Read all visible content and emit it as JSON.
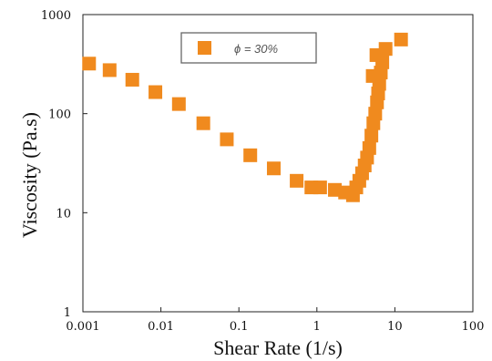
{
  "chart_data": {
    "type": "scatter",
    "xlabel": "Shear Rate (1/s)",
    "ylabel": "Viscosity (Pa.s)",
    "xscale": "log",
    "yscale": "log",
    "xlim": [
      0.001,
      100
    ],
    "ylim": [
      1,
      1000
    ],
    "x_ticks": [
      "0.001",
      "0.01",
      "0.1",
      "1",
      "10",
      "100"
    ],
    "y_ticks": [
      "1",
      "10",
      "100",
      "1000"
    ],
    "grid": false,
    "legend_position": "top",
    "marker_color": "#F08A1E",
    "series": [
      {
        "name": "ϕ = 30%",
        "x": [
          0.0012,
          0.0022,
          0.0043,
          0.0085,
          0.017,
          0.035,
          0.07,
          0.14,
          0.28,
          0.55,
          0.85,
          1.1,
          1.7,
          2.3,
          2.9,
          3.2,
          3.5,
          3.8,
          4.1,
          4.4,
          4.7,
          5.0,
          5.3,
          5.6,
          5.9,
          6.1,
          6.3,
          6.6,
          6.9,
          5.2,
          5.8,
          7.6,
          12
        ],
        "y": [
          320,
          275,
          220,
          165,
          125,
          80,
          55,
          38,
          28,
          21,
          18,
          18,
          17,
          16,
          15,
          18,
          21,
          25,
          30,
          36,
          45,
          60,
          80,
          100,
          130,
          160,
          200,
          260,
          330,
          240,
          390,
          450,
          560
        ]
      }
    ]
  }
}
